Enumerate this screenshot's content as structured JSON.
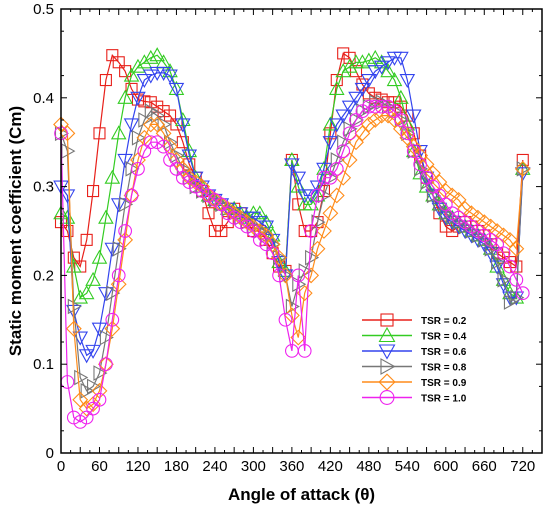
{
  "chart_data": {
    "type": "line",
    "xlabel": "Angle of attack (θ)",
    "ylabel": "Static moment coefficient (Cm)",
    "xlim": [
      0,
      750
    ],
    "ylim": [
      0,
      0.5
    ],
    "xticks": [
      0,
      30,
      60,
      90,
      120,
      150,
      180,
      210,
      240,
      270,
      300,
      330,
      360,
      390,
      420,
      450,
      480,
      510,
      540,
      570,
      600,
      630,
      660,
      690,
      720
    ],
    "yticks": [
      0,
      0.1,
      0.2,
      0.3,
      0.4,
      0.5
    ],
    "grid": false,
    "legend_position": "lower-right",
    "series": [
      {
        "name": "TSR = 0.2",
        "color": "#e8201a",
        "marker": "square",
        "x": [
          0,
          10,
          20,
          30,
          40,
          50,
          60,
          70,
          80,
          90,
          100,
          110,
          120,
          130,
          140,
          150,
          160,
          170,
          180,
          190,
          200,
          210,
          220,
          230,
          240,
          250,
          260,
          270,
          280,
          290,
          300,
          310,
          320,
          330,
          340,
          350,
          360,
          370,
          380,
          390,
          400,
          410,
          420,
          430,
          440,
          450,
          460,
          470,
          480,
          490,
          500,
          510,
          520,
          530,
          540,
          550,
          560,
          570,
          580,
          590,
          600,
          610,
          620,
          630,
          640,
          650,
          660,
          670,
          680,
          690,
          700,
          710,
          720
        ],
        "y": [
          0.26,
          0.25,
          0.22,
          0.21,
          0.24,
          0.295,
          0.36,
          0.42,
          0.448,
          0.44,
          0.43,
          0.41,
          0.398,
          0.396,
          0.395,
          0.39,
          0.385,
          0.38,
          0.37,
          0.35,
          0.325,
          0.31,
          0.295,
          0.27,
          0.25,
          0.25,
          0.26,
          0.275,
          0.27,
          0.26,
          0.25,
          0.25,
          0.24,
          0.225,
          0.21,
          0.205,
          0.33,
          0.28,
          0.25,
          0.25,
          0.26,
          0.295,
          0.36,
          0.42,
          0.45,
          0.445,
          0.43,
          0.415,
          0.405,
          0.4,
          0.398,
          0.395,
          0.395,
          0.39,
          0.38,
          0.36,
          0.335,
          0.31,
          0.29,
          0.27,
          0.255,
          0.25,
          0.255,
          0.26,
          0.255,
          0.25,
          0.245,
          0.235,
          0.225,
          0.22,
          0.215,
          0.21,
          0.33
        ]
      },
      {
        "name": "TSR = 0.4",
        "color": "#33cc22",
        "marker": "triangle-up",
        "x": [
          0,
          10,
          20,
          30,
          40,
          50,
          60,
          70,
          80,
          90,
          100,
          110,
          120,
          130,
          140,
          150,
          160,
          170,
          180,
          190,
          200,
          210,
          220,
          230,
          240,
          250,
          260,
          270,
          280,
          290,
          300,
          310,
          320,
          330,
          340,
          350,
          360,
          370,
          380,
          390,
          400,
          410,
          420,
          430,
          440,
          450,
          460,
          470,
          480,
          490,
          500,
          510,
          520,
          530,
          540,
          550,
          560,
          570,
          580,
          590,
          600,
          610,
          620,
          630,
          640,
          650,
          660,
          670,
          680,
          690,
          700,
          710,
          720
        ],
        "y": [
          0.27,
          0.265,
          0.21,
          0.175,
          0.18,
          0.195,
          0.22,
          0.265,
          0.31,
          0.36,
          0.4,
          0.425,
          0.435,
          0.44,
          0.445,
          0.448,
          0.44,
          0.43,
          0.41,
          0.375,
          0.34,
          0.31,
          0.3,
          0.29,
          0.285,
          0.28,
          0.275,
          0.275,
          0.27,
          0.265,
          0.27,
          0.27,
          0.26,
          0.245,
          0.215,
          0.205,
          0.33,
          0.3,
          0.28,
          0.28,
          0.29,
          0.32,
          0.37,
          0.41,
          0.43,
          0.435,
          0.44,
          0.44,
          0.442,
          0.445,
          0.44,
          0.43,
          0.42,
          0.4,
          0.37,
          0.34,
          0.315,
          0.3,
          0.29,
          0.28,
          0.27,
          0.265,
          0.26,
          0.255,
          0.25,
          0.245,
          0.24,
          0.23,
          0.21,
          0.195,
          0.18,
          0.175,
          0.32
        ]
      },
      {
        "name": "TSR = 0.6",
        "color": "#3344ee",
        "marker": "triangle-down",
        "x": [
          0,
          10,
          20,
          30,
          40,
          50,
          60,
          70,
          80,
          90,
          100,
          110,
          120,
          130,
          140,
          150,
          160,
          170,
          180,
          190,
          200,
          210,
          220,
          230,
          240,
          250,
          260,
          270,
          280,
          290,
          300,
          310,
          320,
          330,
          340,
          350,
          360,
          370,
          380,
          390,
          400,
          410,
          420,
          430,
          440,
          450,
          460,
          470,
          480,
          490,
          500,
          510,
          520,
          530,
          540,
          550,
          560,
          570,
          580,
          590,
          600,
          610,
          620,
          630,
          640,
          650,
          660,
          670,
          680,
          690,
          700,
          710,
          720
        ],
        "y": [
          0.3,
          0.29,
          0.16,
          0.13,
          0.11,
          0.115,
          0.14,
          0.18,
          0.23,
          0.28,
          0.33,
          0.37,
          0.4,
          0.42,
          0.425,
          0.428,
          0.428,
          0.425,
          0.41,
          0.37,
          0.335,
          0.31,
          0.3,
          0.29,
          0.285,
          0.28,
          0.275,
          0.27,
          0.27,
          0.265,
          0.265,
          0.26,
          0.255,
          0.24,
          0.215,
          0.2,
          0.325,
          0.31,
          0.29,
          0.29,
          0.3,
          0.32,
          0.35,
          0.37,
          0.38,
          0.39,
          0.4,
          0.41,
          0.42,
          0.43,
          0.435,
          0.44,
          0.445,
          0.445,
          0.42,
          0.38,
          0.34,
          0.31,
          0.29,
          0.275,
          0.265,
          0.26,
          0.255,
          0.25,
          0.245,
          0.24,
          0.235,
          0.225,
          0.21,
          0.19,
          0.175,
          0.175,
          0.315
        ]
      },
      {
        "name": "TSR = 0.8",
        "color": "#777777",
        "marker": "triangle-right",
        "x": [
          0,
          10,
          20,
          30,
          40,
          50,
          60,
          70,
          80,
          90,
          100,
          110,
          120,
          130,
          140,
          150,
          160,
          170,
          180,
          190,
          200,
          210,
          220,
          230,
          240,
          250,
          260,
          270,
          280,
          290,
          300,
          310,
          320,
          330,
          340,
          350,
          360,
          370,
          380,
          390,
          400,
          410,
          420,
          430,
          440,
          450,
          460,
          470,
          480,
          490,
          500,
          510,
          520,
          530,
          540,
          550,
          560,
          570,
          580,
          590,
          600,
          610,
          620,
          630,
          640,
          650,
          660,
          670,
          680,
          690,
          700,
          710,
          720
        ],
        "y": [
          0.36,
          0.34,
          0.165,
          0.085,
          0.07,
          0.075,
          0.09,
          0.13,
          0.18,
          0.23,
          0.28,
          0.32,
          0.355,
          0.375,
          0.385,
          0.38,
          0.37,
          0.35,
          0.335,
          0.32,
          0.31,
          0.3,
          0.295,
          0.29,
          0.285,
          0.28,
          0.275,
          0.27,
          0.265,
          0.26,
          0.255,
          0.25,
          0.245,
          0.235,
          0.22,
          0.2,
          0.165,
          0.19,
          0.205,
          0.22,
          0.26,
          0.29,
          0.31,
          0.33,
          0.35,
          0.365,
          0.375,
          0.385,
          0.39,
          0.395,
          0.395,
          0.39,
          0.385,
          0.375,
          0.36,
          0.34,
          0.32,
          0.305,
          0.29,
          0.28,
          0.27,
          0.265,
          0.26,
          0.255,
          0.25,
          0.245,
          0.24,
          0.23,
          0.215,
          0.195,
          0.17,
          0.175,
          0.32
        ]
      },
      {
        "name": "TSR = 0.9",
        "color": "#ff8c1a",
        "marker": "diamond",
        "x": [
          0,
          10,
          20,
          30,
          40,
          50,
          60,
          70,
          80,
          90,
          100,
          110,
          120,
          130,
          140,
          150,
          160,
          170,
          180,
          190,
          200,
          210,
          220,
          230,
          240,
          250,
          260,
          270,
          280,
          290,
          300,
          310,
          320,
          330,
          340,
          350,
          360,
          370,
          380,
          390,
          400,
          410,
          420,
          430,
          440,
          450,
          460,
          470,
          480,
          490,
          500,
          510,
          520,
          530,
          540,
          550,
          560,
          570,
          580,
          590,
          600,
          610,
          620,
          630,
          640,
          650,
          660,
          670,
          680,
          690,
          700,
          710,
          720
        ],
        "y": [
          0.37,
          0.36,
          0.14,
          0.06,
          0.05,
          0.055,
          0.07,
          0.1,
          0.14,
          0.19,
          0.24,
          0.29,
          0.33,
          0.355,
          0.37,
          0.37,
          0.36,
          0.345,
          0.33,
          0.32,
          0.31,
          0.305,
          0.3,
          0.29,
          0.285,
          0.28,
          0.275,
          0.27,
          0.265,
          0.26,
          0.255,
          0.25,
          0.245,
          0.235,
          0.22,
          0.2,
          0.155,
          0.13,
          0.18,
          0.2,
          0.23,
          0.25,
          0.27,
          0.29,
          0.31,
          0.33,
          0.35,
          0.36,
          0.37,
          0.375,
          0.38,
          0.38,
          0.375,
          0.365,
          0.355,
          0.345,
          0.335,
          0.325,
          0.315,
          0.305,
          0.295,
          0.29,
          0.285,
          0.275,
          0.27,
          0.265,
          0.26,
          0.255,
          0.25,
          0.245,
          0.24,
          0.23,
          0.32
        ]
      },
      {
        "name": "TSR = 1.0",
        "color": "#ee22ee",
        "marker": "circle",
        "x": [
          0,
          10,
          20,
          30,
          40,
          50,
          60,
          70,
          80,
          90,
          100,
          110,
          120,
          130,
          140,
          150,
          160,
          170,
          180,
          190,
          200,
          210,
          220,
          230,
          240,
          250,
          260,
          270,
          280,
          290,
          300,
          310,
          320,
          330,
          340,
          350,
          360,
          370,
          380,
          390,
          400,
          410,
          420,
          430,
          440,
          450,
          460,
          470,
          480,
          490,
          500,
          510,
          520,
          530,
          540,
          550,
          560,
          570,
          580,
          590,
          600,
          610,
          620,
          630,
          640,
          650,
          660,
          670,
          680,
          690,
          700,
          710,
          720
        ],
        "y": [
          0.36,
          0.08,
          0.04,
          0.035,
          0.04,
          0.05,
          0.06,
          0.1,
          0.15,
          0.2,
          0.25,
          0.29,
          0.32,
          0.34,
          0.35,
          0.35,
          0.345,
          0.33,
          0.32,
          0.31,
          0.305,
          0.3,
          0.295,
          0.29,
          0.285,
          0.28,
          0.27,
          0.265,
          0.26,
          0.255,
          0.25,
          0.24,
          0.235,
          0.225,
          0.2,
          0.15,
          0.115,
          0.2,
          0.115,
          0.25,
          0.29,
          0.31,
          0.31,
          0.32,
          0.34,
          0.36,
          0.375,
          0.385,
          0.39,
          0.39,
          0.39,
          0.39,
          0.385,
          0.375,
          0.36,
          0.34,
          0.325,
          0.31,
          0.3,
          0.29,
          0.28,
          0.27,
          0.265,
          0.26,
          0.255,
          0.25,
          0.245,
          0.24,
          0.235,
          0.225,
          0.21,
          0.195,
          0.18
        ]
      }
    ]
  }
}
